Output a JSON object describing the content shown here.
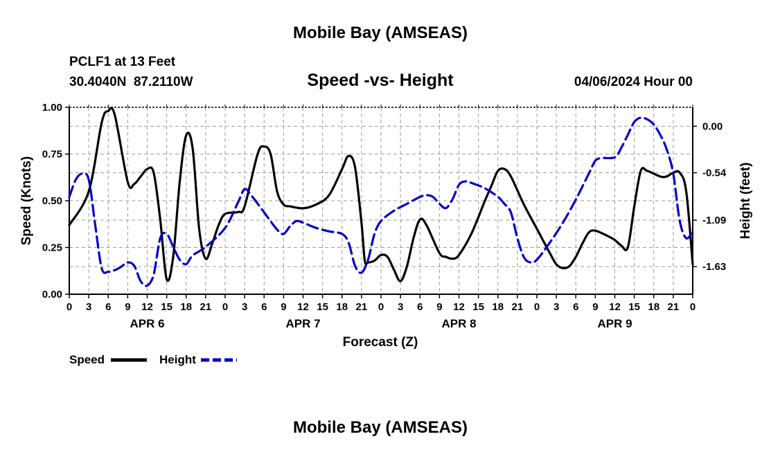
{
  "header": {
    "title_top": "Mobile Bay (AMSEAS)",
    "station": "PCLF1 at 13 Feet",
    "coords": "30.4040N  87.2110W",
    "datetime": "04/06/2024 Hour 00",
    "title_bottom": "Mobile Bay (AMSEAS)"
  },
  "chart_data": {
    "type": "line",
    "title": "Speed -vs- Height",
    "xlabel": "Forecast (Z)",
    "ylabel_left": "Speed (Knots)",
    "ylabel_right": "Height (feet)",
    "x_hours_range": [
      0,
      96
    ],
    "x_tick_step_hours": 3,
    "x_tick_labels": [
      "0",
      "3",
      "6",
      "9",
      "12",
      "15",
      "18",
      "21",
      "0",
      "3",
      "6",
      "9",
      "12",
      "15",
      "18",
      "21",
      "0",
      "3",
      "6",
      "9",
      "12",
      "15",
      "18",
      "21",
      "0",
      "3",
      "6",
      "9",
      "12",
      "15",
      "18",
      "21",
      "0"
    ],
    "day_labels": [
      {
        "label": "APR 6",
        "hour": 12
      },
      {
        "label": "APR 7",
        "hour": 36
      },
      {
        "label": "APR 8",
        "hour": 60
      },
      {
        "label": "APR 9",
        "hour": 84
      }
    ],
    "left_axis": {
      "ylim": [
        0,
        1.0
      ],
      "ticks": [
        0.0,
        0.25,
        0.5,
        0.75,
        1.0
      ],
      "tick_labels": [
        "0.00",
        "0.25",
        "0.50",
        "0.75",
        "1.00"
      ]
    },
    "right_axis": {
      "ylim": [
        -1.95,
        0.22
      ],
      "ticks": [
        0.0,
        -0.54,
        -1.09,
        -1.63
      ],
      "tick_labels": [
        "0.00",
        "-0.54",
        "-1.09",
        "-1.63"
      ]
    },
    "grid": true,
    "series": [
      {
        "name": "Speed",
        "axis": "left",
        "color": "#000000",
        "style": "solid",
        "points": [
          [
            0,
            0.37
          ],
          [
            3,
            0.55
          ],
          [
            5,
            0.92
          ],
          [
            6,
            0.98
          ],
          [
            7,
            0.96
          ],
          [
            9,
            0.6
          ],
          [
            10,
            0.59
          ],
          [
            11,
            0.63
          ],
          [
            12,
            0.67
          ],
          [
            13,
            0.65
          ],
          [
            14,
            0.4
          ],
          [
            15,
            0.08
          ],
          [
            16,
            0.2
          ],
          [
            17,
            0.6
          ],
          [
            18,
            0.85
          ],
          [
            19,
            0.78
          ],
          [
            20,
            0.35
          ],
          [
            21,
            0.19
          ],
          [
            22,
            0.27
          ],
          [
            23,
            0.37
          ],
          [
            24,
            0.43
          ],
          [
            26,
            0.44
          ],
          [
            27,
            0.47
          ],
          [
            29,
            0.75
          ],
          [
            30,
            0.79
          ],
          [
            31,
            0.75
          ],
          [
            32,
            0.55
          ],
          [
            33,
            0.48
          ],
          [
            34,
            0.47
          ],
          [
            36,
            0.46
          ],
          [
            38,
            0.48
          ],
          [
            40,
            0.53
          ],
          [
            42,
            0.67
          ],
          [
            43,
            0.74
          ],
          [
            44,
            0.68
          ],
          [
            45,
            0.38
          ],
          [
            45.5,
            0.18
          ],
          [
            46,
            0.17
          ],
          [
            47,
            0.18
          ],
          [
            48,
            0.21
          ],
          [
            49,
            0.2
          ],
          [
            50,
            0.13
          ],
          [
            51,
            0.07
          ],
          [
            52,
            0.15
          ],
          [
            53,
            0.3
          ],
          [
            54,
            0.4
          ],
          [
            55,
            0.37
          ],
          [
            57,
            0.22
          ],
          [
            58,
            0.2
          ],
          [
            59,
            0.19
          ],
          [
            60,
            0.21
          ],
          [
            62,
            0.33
          ],
          [
            64,
            0.5
          ],
          [
            65,
            0.58
          ],
          [
            66,
            0.66
          ],
          [
            67,
            0.67
          ],
          [
            68,
            0.63
          ],
          [
            70,
            0.48
          ],
          [
            72,
            0.35
          ],
          [
            74,
            0.22
          ],
          [
            75,
            0.16
          ],
          [
            76,
            0.14
          ],
          [
            77,
            0.15
          ],
          [
            78,
            0.2
          ],
          [
            79,
            0.27
          ],
          [
            80,
            0.33
          ],
          [
            81,
            0.34
          ],
          [
            83,
            0.31
          ],
          [
            84,
            0.29
          ],
          [
            85,
            0.26
          ],
          [
            86,
            0.25
          ],
          [
            87,
            0.47
          ],
          [
            88,
            0.66
          ],
          [
            89,
            0.66
          ],
          [
            91,
            0.63
          ],
          [
            92,
            0.63
          ],
          [
            93,
            0.65
          ],
          [
            94,
            0.65
          ],
          [
            95,
            0.55
          ],
          [
            96,
            0.16
          ]
        ]
      },
      {
        "name": "Height",
        "axis": "right",
        "color": "#0000cc",
        "style": "dashed",
        "points": [
          [
            0,
            -0.82
          ],
          [
            1,
            -0.62
          ],
          [
            2,
            -0.55
          ],
          [
            3,
            -0.62
          ],
          [
            4,
            -1.15
          ],
          [
            5,
            -1.65
          ],
          [
            6,
            -1.69
          ],
          [
            7,
            -1.67
          ],
          [
            8,
            -1.63
          ],
          [
            9,
            -1.58
          ],
          [
            10,
            -1.62
          ],
          [
            11,
            -1.8
          ],
          [
            12,
            -1.85
          ],
          [
            13,
            -1.72
          ],
          [
            14,
            -1.3
          ],
          [
            15,
            -1.25
          ],
          [
            16,
            -1.4
          ],
          [
            17,
            -1.55
          ],
          [
            18,
            -1.6
          ],
          [
            19,
            -1.5
          ],
          [
            21,
            -1.4
          ],
          [
            24,
            -1.18
          ],
          [
            26,
            -0.88
          ],
          [
            27,
            -0.73
          ],
          [
            28,
            -0.8
          ],
          [
            30,
            -1.0
          ],
          [
            32,
            -1.2
          ],
          [
            33,
            -1.25
          ],
          [
            34,
            -1.16
          ],
          [
            35,
            -1.1
          ],
          [
            36,
            -1.12
          ],
          [
            38,
            -1.18
          ],
          [
            40,
            -1.22
          ],
          [
            42,
            -1.25
          ],
          [
            43,
            -1.35
          ],
          [
            44,
            -1.62
          ],
          [
            45,
            -1.7
          ],
          [
            46,
            -1.55
          ],
          [
            47,
            -1.25
          ],
          [
            48,
            -1.1
          ],
          [
            50,
            -0.98
          ],
          [
            52,
            -0.9
          ],
          [
            54,
            -0.82
          ],
          [
            55,
            -0.8
          ],
          [
            56,
            -0.82
          ],
          [
            57,
            -0.9
          ],
          [
            58,
            -0.95
          ],
          [
            59,
            -0.85
          ],
          [
            60,
            -0.68
          ],
          [
            61,
            -0.64
          ],
          [
            62,
            -0.66
          ],
          [
            64,
            -0.72
          ],
          [
            66,
            -0.82
          ],
          [
            67,
            -0.9
          ],
          [
            68,
            -1.0
          ],
          [
            69,
            -1.3
          ],
          [
            70,
            -1.52
          ],
          [
            71,
            -1.58
          ],
          [
            72,
            -1.55
          ],
          [
            74,
            -1.35
          ],
          [
            76,
            -1.12
          ],
          [
            78,
            -0.85
          ],
          [
            80,
            -0.55
          ],
          [
            81,
            -0.4
          ],
          [
            82,
            -0.37
          ],
          [
            84,
            -0.36
          ],
          [
            85,
            -0.25
          ],
          [
            86,
            -0.1
          ],
          [
            87,
            0.05
          ],
          [
            88,
            0.1
          ],
          [
            89,
            0.08
          ],
          [
            90,
            0.02
          ],
          [
            91,
            -0.1
          ],
          [
            92,
            -0.27
          ],
          [
            93,
            -0.55
          ],
          [
            94,
            -1.1
          ],
          [
            95,
            -1.3
          ],
          [
            96,
            -1.22
          ]
        ]
      }
    ],
    "legend": {
      "placement": "bottom-left",
      "items": [
        "Speed",
        "Height"
      ]
    }
  }
}
